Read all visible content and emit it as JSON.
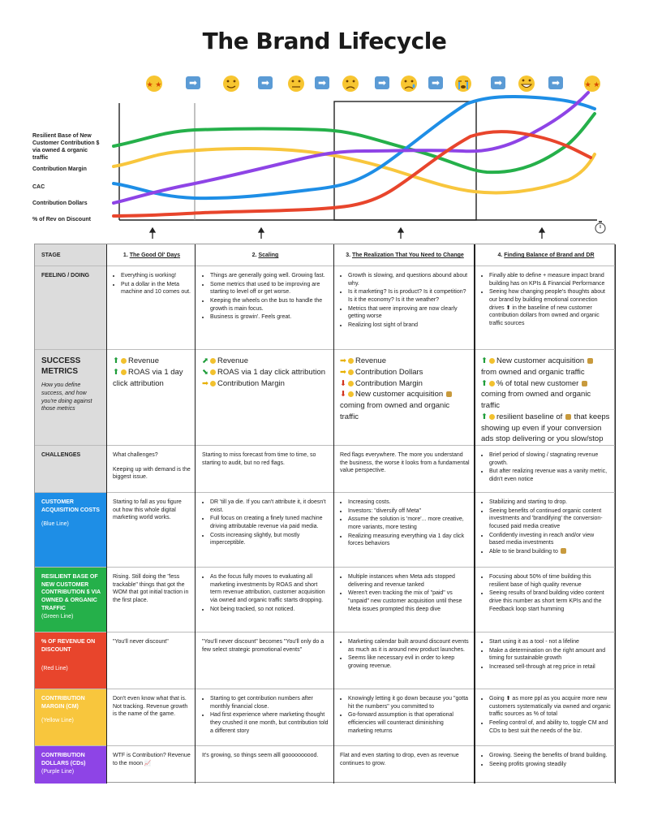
{
  "title": "The Brand Lifecycle",
  "legend": {
    "green": [
      "Resilient Base of New",
      "Customer Contribution $",
      "via owned & organic",
      "traffic"
    ],
    "yellow": "Contribution Margin",
    "blue": "CAC",
    "purple": "Contribution Dollars",
    "red": "% of Rev on Discount"
  },
  "colors": {
    "green": "#25b04a",
    "yellow": "#f8c63d",
    "blue": "#1e8ee6",
    "purple": "#8e44e6",
    "red": "#e8452c",
    "label_gray": "#dcdcdc"
  },
  "emoji_sequence": [
    "star-struck-face",
    "arrow",
    "slightly-smiling-face",
    "arrow",
    "neutral-face",
    "arrow",
    "slightly-frowning-face",
    "arrow",
    "crying-face",
    "arrow",
    "loudly-crying-face",
    "arrow",
    "grinning-face",
    "arrow",
    "star-struck-face"
  ],
  "header": {
    "stage_label": "STAGE",
    "s1_num": "1.",
    "s1": "The Good Ol' Days",
    "s2_num": "2.",
    "s2": "Scaling",
    "s3_num": "3.",
    "s3": "The Realization That You Need to Change",
    "s4_num": "4.",
    "s4": "Finding Balance of Brand and DR"
  },
  "feeling": {
    "label": "FEELING / DOING",
    "c1": [
      "Everything is working!",
      "Put a dollar in the Meta machine and 10 comes out."
    ],
    "c2": [
      "Things are generally going well. Growing fast.",
      "Some metrics that used to be improving are starting to level off or get worse.",
      "Keeping the wheels on the bus to handle the growth is main focus.",
      "Business is growin'. Feels great."
    ],
    "c3": [
      "Growth is slowing, and questions abound about why.",
      "Is it marketing? Is is product? Is it competition? Is it the economy? Is it the weather?",
      "Metrics that were improving are now clearly getting worse",
      "Realizing lost sight of brand"
    ],
    "c4": [
      "Finally able to define + measure impact brand building has on KPIs  & Financial Performance",
      "Seeing how changing people's thoughts about our brand by building emotional connection drives ⬆ in the baseline of new customer contribution dollars from owned and organic traffic sources"
    ]
  },
  "metrics": {
    "label": "SUCCESS METRICS",
    "sub": "How you define success, and how you're doing against those metrics",
    "c1": [
      "Revenue",
      "ROAS via 1 day click attribution"
    ],
    "c2": [
      "Revenue",
      "ROAS via 1 day click attribution",
      "Contribution Margin"
    ],
    "c3": [
      "Revenue",
      "Contribution Dollars",
      "Contribution Margin",
      "New customer acquisition",
      "coming from owned and organic traffic"
    ],
    "c4": [
      "New customer acquisition",
      "from owned and organic traffic",
      "% of total new customer",
      "coming from owned and organic traffic",
      "resilient baseline of",
      "that keeps showing up even if your conversion ads stop delivering or you slow/stop discounts and promos"
    ]
  },
  "challenges": {
    "label": "CHALLENGES",
    "c1a": "What challenges?",
    "c1b": "Keeping up with demand is the biggest issue.",
    "c2": "Starting to miss forecast from time to time, so starting to audit, but no red flags.",
    "c3": "Red flags everywhere. The more you understand the business, the worse it looks from a fundamental value perspective.",
    "c4": [
      "Brief period of slowing / stagnating revenue growth.",
      "But after realizing revenue was a vanity metric, didn't even notice"
    ]
  },
  "cac": {
    "label": "CUSTOMER ACQUISITION COSTS",
    "sub": "(Blue Line)",
    "c1": "Starting to fall as you figure out how this whole digital marketing world works.",
    "c2": [
      "DR 'till ya die. If you can't attribute it, it doesn't exist.",
      "Full focus on creating a finely tuned machine driving attributable revenue via paid media.",
      "Costs increasing slightly, but mostly imperceptible."
    ],
    "c3": [
      "Increasing costs.",
      "Investors: \"diversify off Meta\"",
      "Assume the solution is 'more'... more creative, more variants, more testing",
      "Realizing measuring everything via 1 day click forces behaviors"
    ],
    "c4": [
      "Stabilizing and starting to drop.",
      "Seeing benefits of continued organic content investments and 'brandifying' the conversion-focused paid media creative",
      "Confidently investing in reach and/or view based media investments",
      "Able to tie brand building to"
    ]
  },
  "resilient": {
    "label": "RESILIENT BASE OF NEW CUSTOMER CONTRIBUTION $ VIA OWNED & ORGANIC TRAFFIC",
    "sub": "(Green Line)",
    "c1": "Rising. Still doing the \"less trackable\" things that got the WOM that got initial traction in the first place.",
    "c2": [
      "As the focus fully moves to evaluating all marketing investments by ROAS and short term revenue attribution, customer acquisition via owned and organic traffic starts dropping.",
      "Not being tracked, so not noticed."
    ],
    "c3": [
      "Multiple instances when Meta ads stopped delivering and revenue tanked",
      "Weren't even tracking the mix of \"paid\" vs \"unpaid\" new customer acquisition until these Meta issues prompted this deep dive"
    ],
    "c4": [
      "Focusing about 50% of time building this resilient base of high quality revenue",
      "Seeing results of brand building video content drive this number as short term KPIs and the Feedback loop start humming"
    ]
  },
  "discount": {
    "label": "% OF REVENUE ON DISCOUNT",
    "sub": "(Red Line)",
    "c1": "\"You'll never discount\"",
    "c2": "\"You'll never discount\" becomes \"You'll only do a few select strategic promotional events\"",
    "c3": [
      "Marketing calendar built around discount events as much as it is around new product launches.",
      "Seems like necessary evil in order to keep growing revenue."
    ],
    "c4": [
      "Start using it as a tool - not a lifeline",
      "Make a determination on the right amount and timing for sustainable growth",
      "Increased sell-through at reg price in retail"
    ]
  },
  "cm": {
    "label": "CONTRIBUTION MARGIN (CM)",
    "sub": "(Yellow Line)",
    "c1": "Don't even know what that is. Not tracking. Revenue growth is the name of the game.",
    "c2": [
      "Starting to get contribution numbers after monthly financial close.",
      "Had first experience where marketing thought they crushed it one month, but contribution told a different story"
    ],
    "c3": [
      "Knowingly letting it go down because you \"gotta hit the numbers\" you committed to",
      "Go-forward assumption is that operational efficiencies will counteract diminishing marketing returns"
    ],
    "c4": [
      "Going ⬆ as more ppl as you acquire more new customers systematically via owned and organic traffic sources as % of total",
      "Feeling control of, and ability to, toggle CM and CDs to best suit the needs of the biz."
    ]
  },
  "cd": {
    "label": "CONTRIBUTION DOLLARS (CDs)",
    "sub": "(Purple Line)",
    "c1": "WTF is Contribution? Revenue to the moon 📈",
    "c2": "It's growing, so things seem alll goooooooood.",
    "c3": "Flat and even starting to drop, even as revenue continues to grow.",
    "c4": [
      "Growing. Seeing the benefits of brand building.",
      "Seeing profits growing steadily"
    ]
  }
}
